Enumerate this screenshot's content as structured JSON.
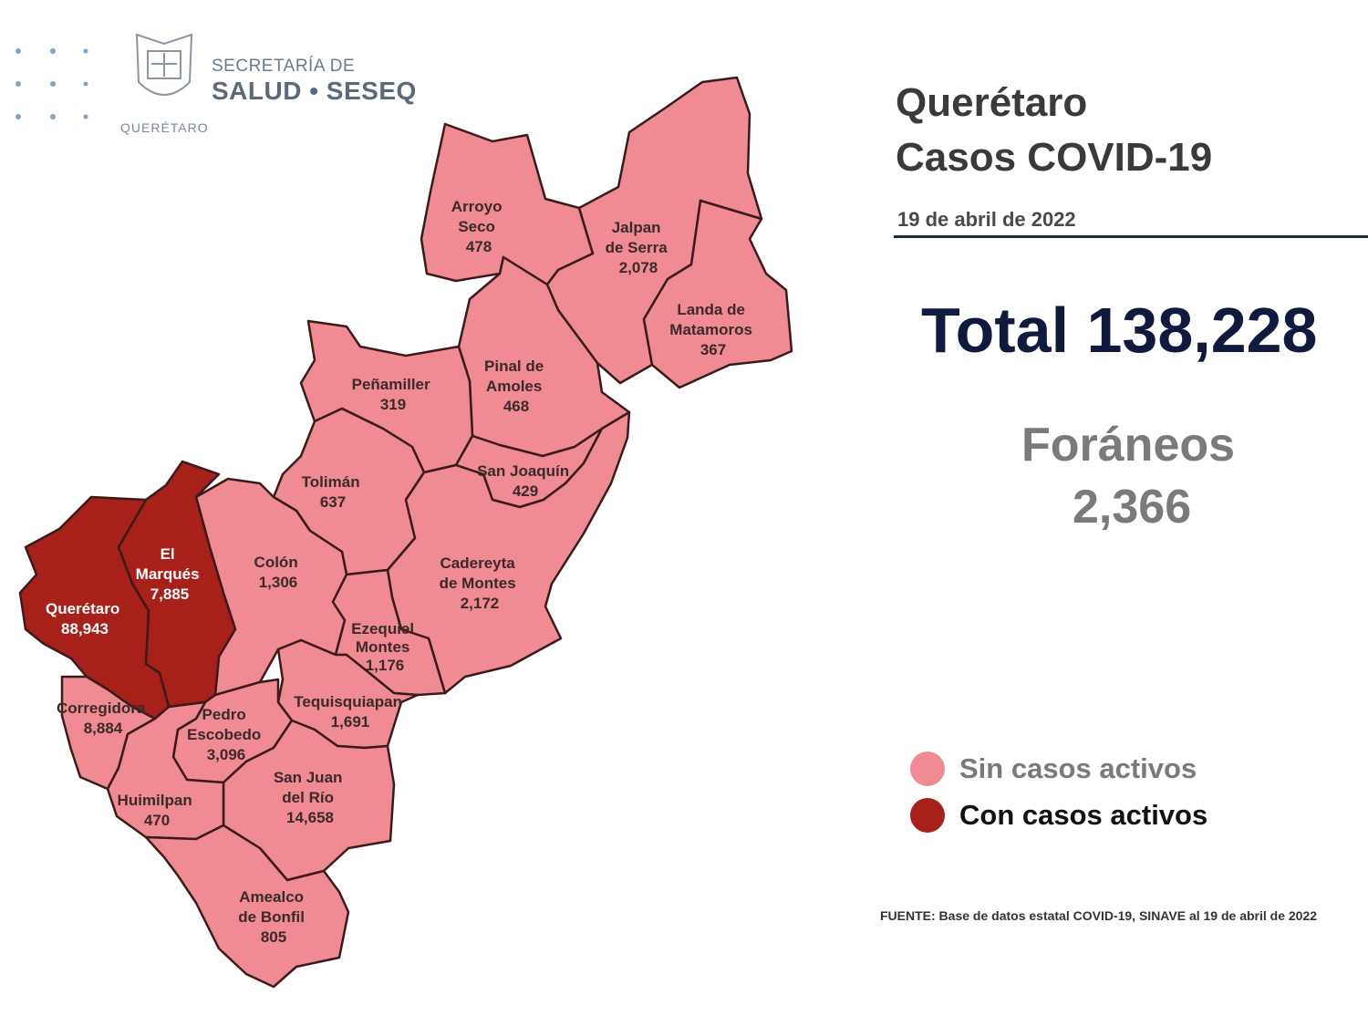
{
  "header": {
    "logo_line1": "SECRETARÍA DE",
    "logo_line2": "SALUD • SESEQ",
    "logo_sub": "QUERÉTARO"
  },
  "info": {
    "title_line1": "Querétaro",
    "title_line2": "Casos COVID-19",
    "date": "19 de abril de 2022",
    "total": "Total 138,228",
    "foraneos_label": "Foráneos",
    "foraneos_value": "2,366"
  },
  "legend": {
    "items": [
      {
        "label": "Sin casos activos",
        "color": "#f08a93"
      },
      {
        "label": "Con casos activos",
        "color": "#a8201a"
      }
    ]
  },
  "source": "FUENTE: Base de datos estatal COVID-19, SINAVE al 19 de abril de 2022",
  "colors": {
    "inactive": "#f08a93",
    "active": "#a8201a"
  },
  "municipalities": {
    "arroyo_seco": {
      "name1": "Arroyo",
      "name2": "Seco",
      "cases": "478",
      "status": "inactive"
    },
    "jalpan": {
      "name1": "Jalpan",
      "name2": "de Serra",
      "cases": "2,078",
      "status": "inactive"
    },
    "landa": {
      "name1": "Landa de",
      "name2": "Matamoros",
      "cases": "367",
      "status": "inactive"
    },
    "pinal": {
      "name1": "Pinal de",
      "name2": "Amoles",
      "cases": "468",
      "status": "inactive"
    },
    "penamiller": {
      "name1": "Peñamiller",
      "cases": "319",
      "status": "inactive"
    },
    "san_joaquin": {
      "name1": "San Joaquín",
      "cases": "429",
      "status": "inactive"
    },
    "toliman": {
      "name1": "Tolimán",
      "cases": "637",
      "status": "inactive"
    },
    "cadereyta": {
      "name1": "Cadereyta",
      "name2": "de Montes",
      "cases": "2,172",
      "status": "inactive"
    },
    "colon": {
      "name1": "Colón",
      "cases": "1,306",
      "status": "inactive"
    },
    "el_marques": {
      "name1": "El",
      "name2": "Marqués",
      "cases": "7,885",
      "status": "active"
    },
    "queretaro": {
      "name1": "Querétaro",
      "cases": "88,943",
      "status": "active"
    },
    "ezequiel_montes": {
      "name1": "Ezequiel",
      "name2": "Montes",
      "cases": "1,176",
      "status": "inactive"
    },
    "tequisquiapan": {
      "name1": "Tequisquiapan",
      "cases": "1,691",
      "status": "inactive"
    },
    "pedro_escobedo": {
      "name1": "Pedro",
      "name2": "Escobedo",
      "cases": "3,096",
      "status": "inactive"
    },
    "corregidora": {
      "name1": "Corregidora",
      "cases": "8,884",
      "status": "inactive"
    },
    "san_juan_del_rio": {
      "name1": "San Juan",
      "name2": "del Río",
      "cases": "14,658",
      "status": "inactive"
    },
    "huimilpan": {
      "name1": "Huimilpan",
      "cases": "470",
      "status": "inactive"
    },
    "amealco": {
      "name1": "Amealco",
      "name2": "de Bonfil",
      "cases": "805",
      "status": "inactive"
    }
  }
}
